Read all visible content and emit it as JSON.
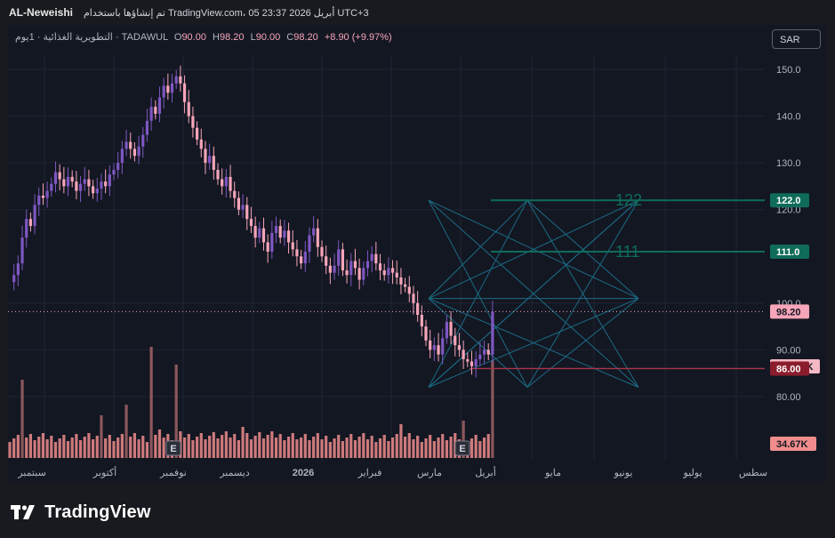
{
  "header": {
    "author": "AL-Neweishi",
    "caption": "تم إنشاؤها باستخدام TradingView.com، 05 أبريل 2026 23:37 UTC+3"
  },
  "legend": {
    "symbol": "التطويرية الغذائية · 1يوم · TADAWUL",
    "o_label": "O",
    "o_value": "90.00",
    "h_label": "H",
    "h_value": "98.20",
    "l_label": "L",
    "l_value": "90.00",
    "c_label": "C",
    "c_value": "98.20",
    "change": "+8.90 (+9.97%)"
  },
  "currency_button": "SAR",
  "brand": {
    "name": "TradingView",
    "logo_icon": "tradingview-logo-icon"
  },
  "colors": {
    "background": "#131722",
    "candle_up": "#7e57c2",
    "candle_down": "#f7a5b9",
    "volume": "#f08c8c",
    "level": "#0f6b5a",
    "pattern": "#1b6b85",
    "support": "#a9334a"
  },
  "chart_data": {
    "type": "candlestick",
    "y_ticks": [
      "150.0",
      "140.0",
      "130.0",
      "120.0",
      "100.0",
      "90.00",
      "80.00"
    ],
    "y_tick_values": [
      150,
      140,
      130,
      120,
      100,
      90,
      80
    ],
    "x_labels": [
      "سبتمبر",
      "أكتوبر",
      "نوفمبر",
      "ديسمبر",
      "2026",
      "فبراير",
      "مارس",
      "أبريل",
      "مايو",
      "يونيو",
      "يوليو",
      "سطس"
    ],
    "ylim": [
      72,
      157
    ],
    "current_price": 98.2,
    "price_labels": [
      "122.0",
      "111.0",
      "98.20",
      "230.54K",
      "86.00",
      "34.67K"
    ],
    "levels": [
      {
        "label": "122",
        "value": 122.0
      },
      {
        "label": "111",
        "value": 111.0
      }
    ],
    "support_level": 86.0,
    "earnings_markers": [
      "E",
      "E"
    ],
    "pattern_points": [
      [
        0.0,
        122
      ],
      [
        0.47,
        122
      ],
      [
        1.0,
        122
      ],
      [
        0.0,
        101
      ],
      [
        1.0,
        101
      ],
      [
        0.0,
        82
      ],
      [
        0.47,
        82
      ],
      [
        1.0,
        82
      ]
    ],
    "price_series": [
      [
        0,
        104.5
      ],
      [
        1,
        106
      ],
      [
        2,
        108.5
      ],
      [
        3,
        114
      ],
      [
        4,
        118
      ],
      [
        5,
        116.5
      ],
      [
        6,
        121
      ],
      [
        7,
        123
      ],
      [
        8,
        122.5
      ],
      [
        9,
        124
      ],
      [
        10,
        125.5
      ],
      [
        11,
        128
      ],
      [
        12,
        126.5
      ],
      [
        13,
        125
      ],
      [
        14,
        127
      ],
      [
        15,
        126
      ],
      [
        16,
        124
      ],
      [
        17,
        125.5
      ],
      [
        18,
        126.5
      ],
      [
        19,
        125
      ],
      [
        20,
        123.5
      ],
      [
        21,
        124.5
      ],
      [
        22,
        126
      ],
      [
        23,
        125
      ],
      [
        24,
        127.5
      ],
      [
        25,
        128.5
      ],
      [
        26,
        130
      ],
      [
        27,
        133
      ],
      [
        28,
        134.5
      ],
      [
        29,
        133
      ],
      [
        30,
        131.5
      ],
      [
        31,
        133.5
      ],
      [
        32,
        136
      ],
      [
        33,
        139
      ],
      [
        34,
        142
      ],
      [
        35,
        140.5
      ],
      [
        36,
        144
      ],
      [
        37,
        146.5
      ],
      [
        38,
        145
      ],
      [
        39,
        147
      ],
      [
        40,
        148.5
      ],
      [
        41,
        147
      ],
      [
        42,
        143
      ],
      [
        43,
        140
      ],
      [
        44,
        137.5
      ],
      [
        45,
        135
      ],
      [
        46,
        133
      ],
      [
        47,
        130
      ],
      [
        48,
        131.5
      ],
      [
        49,
        128.5
      ],
      [
        50,
        126.5
      ],
      [
        51,
        125
      ],
      [
        52,
        127
      ],
      [
        53,
        124
      ],
      [
        54,
        122.5
      ],
      [
        55,
        120
      ],
      [
        56,
        121
      ],
      [
        57,
        118
      ],
      [
        58,
        116.5
      ],
      [
        59,
        114
      ],
      [
        60,
        116
      ],
      [
        61,
        113
      ],
      [
        62,
        111
      ],
      [
        63,
        115
      ],
      [
        64,
        116.5
      ],
      [
        65,
        114
      ],
      [
        66,
        115.5
      ],
      [
        67,
        113
      ],
      [
        68,
        111.5
      ],
      [
        69,
        110
      ],
      [
        70,
        108.5
      ],
      [
        71,
        111
      ],
      [
        72,
        114.5
      ],
      [
        73,
        116
      ],
      [
        74,
        112
      ],
      [
        75,
        110
      ],
      [
        76,
        108
      ],
      [
        77,
        106.5
      ],
      [
        78,
        108
      ],
      [
        79,
        111.5
      ],
      [
        80,
        107
      ],
      [
        81,
        106
      ],
      [
        82,
        109
      ],
      [
        83,
        107.5
      ],
      [
        84,
        105
      ],
      [
        85,
        107.5
      ],
      [
        86,
        109
      ],
      [
        87,
        110.5
      ],
      [
        88,
        108.5
      ],
      [
        89,
        107
      ],
      [
        90,
        106
      ],
      [
        91,
        107.5
      ],
      [
        92,
        106.5
      ],
      [
        93,
        105.5
      ],
      [
        94,
        104
      ],
      [
        95,
        103.5
      ],
      [
        96,
        102
      ],
      [
        97,
        100
      ],
      [
        98,
        97.5
      ],
      [
        99,
        95
      ],
      [
        100,
        92
      ],
      [
        101,
        90
      ],
      [
        102,
        91
      ],
      [
        103,
        89
      ],
      [
        104,
        92.5
      ],
      [
        105,
        96
      ],
      [
        106,
        93
      ],
      [
        107,
        91
      ],
      [
        108,
        90
      ],
      [
        109,
        88
      ],
      [
        110,
        87.5
      ],
      [
        111,
        86.5
      ],
      [
        112,
        88
      ],
      [
        113,
        89
      ],
      [
        114,
        90
      ],
      [
        115,
        89
      ],
      [
        116,
        98.2
      ]
    ]
  }
}
